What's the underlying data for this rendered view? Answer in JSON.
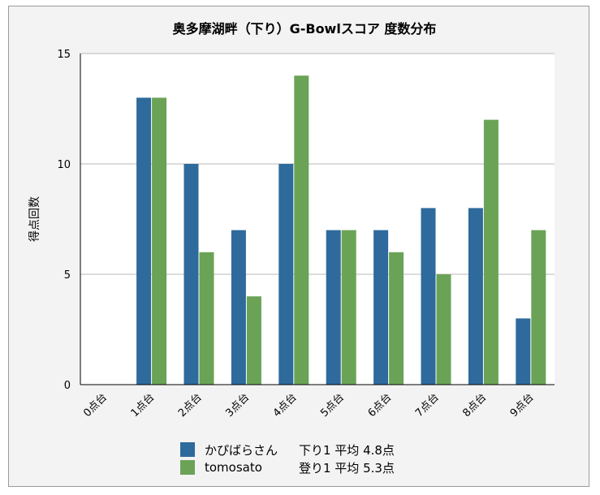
{
  "chart_data": {
    "type": "bar",
    "title": "奥多摩湖畔（下り）G-Bowlスコア 度数分布",
    "xlabel": "",
    "ylabel": "得点回数",
    "categories": [
      "0点台",
      "1点台",
      "2点台",
      "3点台",
      "4点台",
      "5点台",
      "6点台",
      "7点台",
      "8点台",
      "9点台"
    ],
    "ylim": [
      0,
      15
    ],
    "yticks": [
      "0",
      "5",
      "10",
      "15"
    ],
    "grid": true,
    "legend_position": "bottom",
    "series": [
      {
        "name": "かぴばらさん",
        "stat": "下り1 平均 4.8点",
        "color": "#2e6a9c",
        "values": [
          0,
          13,
          10,
          7,
          10,
          7,
          7,
          8,
          8,
          3
        ]
      },
      {
        "name": "tomosato",
        "stat": "登り1 平均 5.3点",
        "color": "#6aa356",
        "values": [
          0,
          13,
          6,
          4,
          14,
          7,
          6,
          5,
          12,
          7
        ]
      }
    ]
  }
}
